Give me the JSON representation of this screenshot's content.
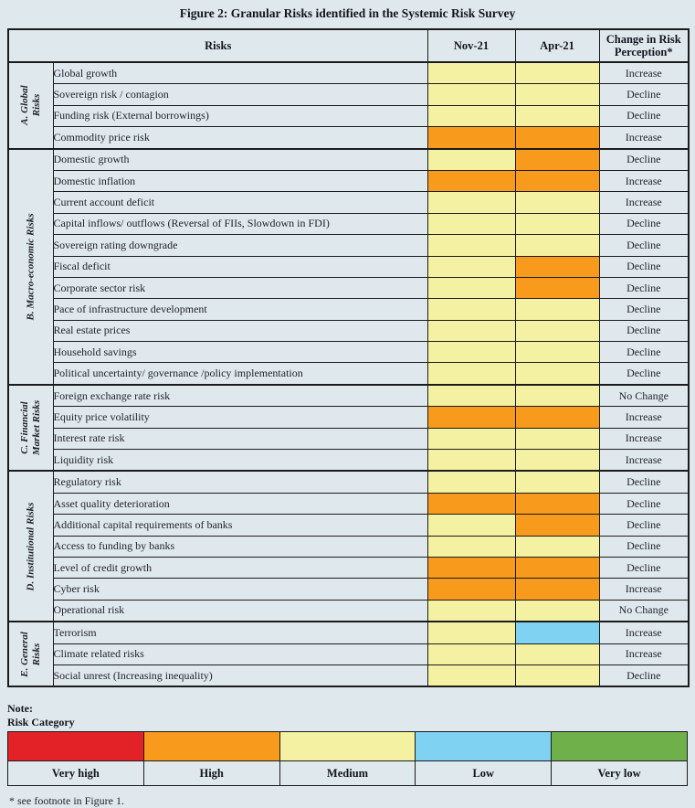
{
  "colors": {
    "Very high": "#e32227",
    "High": "#f89b1c",
    "Medium": "#f5f1a2",
    "Low": "#7fd2f2",
    "Very low": "#70b04a"
  },
  "ui": {
    "page_background": "#dfe9ed",
    "border": "#1b1b1b"
  },
  "table": {
    "headers": {
      "risks": "Risks",
      "nov": "Nov-21",
      "apr": "Apr-21",
      "change": "Change in Risk Perception*"
    }
  },
  "chart_data": {
    "type": "heatmap",
    "title": "Figure 2: Granular Risks identified in the Systemic Risk Survey",
    "columns": [
      "Nov-21",
      "Apr-21"
    ],
    "scale": [
      "Very high",
      "High",
      "Medium",
      "Low",
      "Very low"
    ],
    "groups": [
      {
        "label": "A. Global\nRisks",
        "rows": [
          {
            "risk": "Global growth",
            "nov21": "Medium",
            "apr21": "Medium",
            "change": "Increase"
          },
          {
            "risk": "Sovereign risk / contagion",
            "nov21": "Medium",
            "apr21": "Medium",
            "change": "Decline"
          },
          {
            "risk": "Funding risk (External borrowings)",
            "nov21": "Medium",
            "apr21": "Medium",
            "change": "Decline"
          },
          {
            "risk": "Commodity price risk",
            "nov21": "High",
            "apr21": "High",
            "change": "Increase"
          }
        ]
      },
      {
        "label": "B. Macro-economic Risks",
        "rows": [
          {
            "risk": "Domestic growth",
            "nov21": "Medium",
            "apr21": "High",
            "change": "Decline"
          },
          {
            "risk": "Domestic inflation",
            "nov21": "High",
            "apr21": "High",
            "change": "Increase"
          },
          {
            "risk": "Current account deficit",
            "nov21": "Medium",
            "apr21": "Medium",
            "change": "Increase"
          },
          {
            "risk": "Capital inflows/ outflows (Reversal of FIIs, Slowdown in FDI)",
            "nov21": "Medium",
            "apr21": "Medium",
            "change": "Decline"
          },
          {
            "risk": "Sovereign rating downgrade",
            "nov21": "Medium",
            "apr21": "Medium",
            "change": "Decline"
          },
          {
            "risk": "Fiscal deficit",
            "nov21": "Medium",
            "apr21": "High",
            "change": "Decline"
          },
          {
            "risk": "Corporate sector risk",
            "nov21": "Medium",
            "apr21": "High",
            "change": "Decline"
          },
          {
            "risk": "Pace of infrastructure development",
            "nov21": "Medium",
            "apr21": "Medium",
            "change": "Decline"
          },
          {
            "risk": "Real estate prices",
            "nov21": "Medium",
            "apr21": "Medium",
            "change": "Decline"
          },
          {
            "risk": "Household savings",
            "nov21": "Medium",
            "apr21": "Medium",
            "change": "Decline"
          },
          {
            "risk": "Political uncertainty/ governance /policy implementation",
            "nov21": "Medium",
            "apr21": "Medium",
            "change": "Decline"
          }
        ]
      },
      {
        "label": "C. Financial\nMarket Risks",
        "rows": [
          {
            "risk": "Foreign exchange rate risk",
            "nov21": "Medium",
            "apr21": "Medium",
            "change": "No Change"
          },
          {
            "risk": "Equity price volatility",
            "nov21": "High",
            "apr21": "High",
            "change": "Increase"
          },
          {
            "risk": "Interest rate risk",
            "nov21": "Medium",
            "apr21": "Medium",
            "change": "Increase"
          },
          {
            "risk": "Liquidity risk",
            "nov21": "Medium",
            "apr21": "Medium",
            "change": "Increase"
          }
        ]
      },
      {
        "label": "D. Institutional Risks",
        "rows": [
          {
            "risk": "Regulatory risk",
            "nov21": "Medium",
            "apr21": "Medium",
            "change": "Decline"
          },
          {
            "risk": "Asset quality deterioration",
            "nov21": "High",
            "apr21": "High",
            "change": "Decline"
          },
          {
            "risk": "Additional capital requirements of banks",
            "nov21": "Medium",
            "apr21": "High",
            "change": "Decline"
          },
          {
            "risk": "Access to funding by banks",
            "nov21": "Medium",
            "apr21": "Medium",
            "change": "Decline"
          },
          {
            "risk": "Level of credit growth",
            "nov21": "High",
            "apr21": "High",
            "change": "Decline"
          },
          {
            "risk": "Cyber risk",
            "nov21": "High",
            "apr21": "High",
            "change": "Increase"
          },
          {
            "risk": "Operational risk",
            "nov21": "Medium",
            "apr21": "Medium",
            "change": "No Change"
          }
        ]
      },
      {
        "label": "E. General\nRisks",
        "rows": [
          {
            "risk": "Terrorism",
            "nov21": "Medium",
            "apr21": "Low",
            "change": "Increase"
          },
          {
            "risk": "Climate related risks",
            "nov21": "Medium",
            "apr21": "Medium",
            "change": "Increase"
          },
          {
            "risk": "Social unrest (Increasing inequality)",
            "nov21": "Medium",
            "apr21": "Medium",
            "change": "Decline"
          }
        ]
      }
    ]
  },
  "legend": {
    "note_label": "Note:",
    "category_label": "Risk Category",
    "items": [
      {
        "label": "Very high"
      },
      {
        "label": "High"
      },
      {
        "label": "Medium"
      },
      {
        "label": "Low"
      },
      {
        "label": "Very low"
      }
    ]
  },
  "footnote": "* see footnote in Figure 1."
}
